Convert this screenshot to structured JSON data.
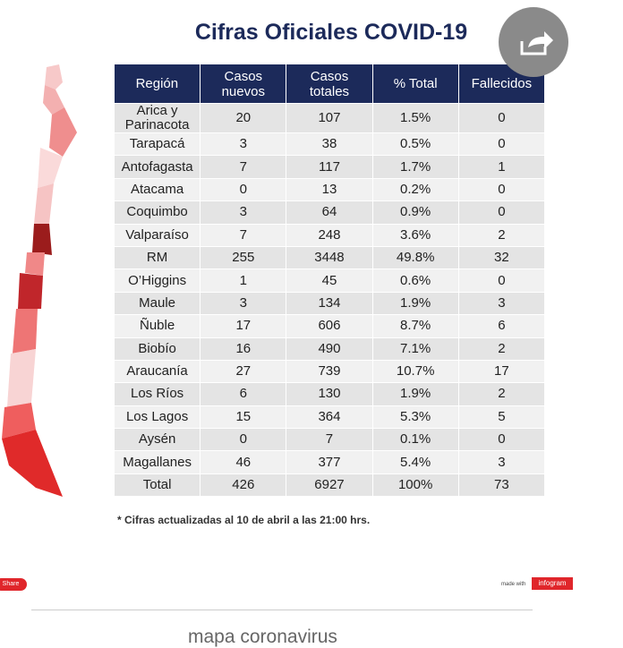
{
  "header": {
    "title": "Cifras Oficiales COVID-19"
  },
  "table": {
    "columns": [
      "Región",
      "Casos nuevos",
      "Casos totales",
      "% Total",
      "Fallecidos"
    ],
    "rows": [
      [
        "Arica y Parinacota",
        20,
        107,
        "1.5%",
        0
      ],
      [
        "Tarapacá",
        3,
        38,
        "0.5%",
        0
      ],
      [
        "Antofagasta",
        7,
        117,
        "1.7%",
        1
      ],
      [
        "Atacama",
        0,
        13,
        "0.2%",
        0
      ],
      [
        "Coquimbo",
        3,
        64,
        "0.9%",
        0
      ],
      [
        "Valparaíso",
        7,
        248,
        "3.6%",
        2
      ],
      [
        "RM",
        255,
        3448,
        "49.8%",
        32
      ],
      [
        "O’Higgins",
        1,
        45,
        "0.6%",
        0
      ],
      [
        "Maule",
        3,
        134,
        "1.9%",
        3
      ],
      [
        "Ñuble",
        17,
        606,
        "8.7%",
        6
      ],
      [
        "Biobío",
        16,
        490,
        "7.1%",
        2
      ],
      [
        "Araucanía",
        27,
        739,
        "10.7%",
        17
      ],
      [
        "Los Ríos",
        6,
        130,
        "1.9%",
        2
      ],
      [
        "Los Lagos",
        15,
        364,
        "5.3%",
        5
      ],
      [
        "Aysén",
        0,
        7,
        "0.1%",
        0
      ],
      [
        "Magallanes",
        46,
        377,
        "5.4%",
        3
      ],
      [
        "Total",
        426,
        6927,
        "100%",
        73
      ]
    ]
  },
  "footnote": "* Cifras actualizadas al 10 de abril a las 21:00 hrs.",
  "share_label": "Share",
  "made_with": "made with",
  "brand": "infogram",
  "bottom_text": "mapa coronavirus"
}
